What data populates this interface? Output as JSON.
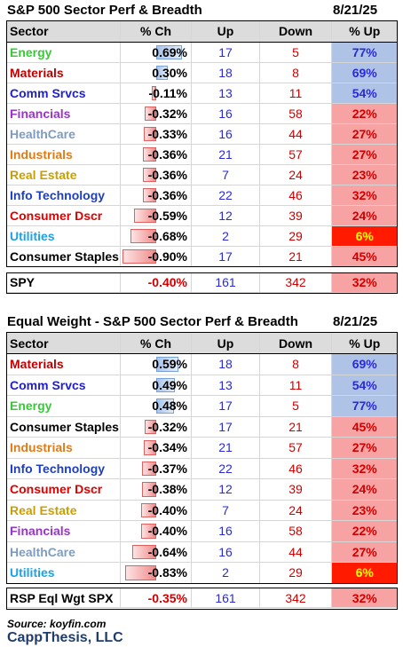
{
  "colors": {
    "up_text": "#2a2ad8",
    "down_text": "#d00000",
    "hi_fill": "#aec3e6",
    "lo_fill": "#f7a3a3",
    "worst_fill": "#ff1a00",
    "worst_text": "#ffff00",
    "pos_bar": "#a9c4ea",
    "neg_bar": "#f08c8c",
    "brand": "#1f3c6e"
  },
  "chart_data": [
    {
      "type": "table",
      "title": "S&P 500 Sector Perf & Breadth",
      "date": "8/21/25",
      "columns": [
        "Sector",
        "% Ch",
        "Up",
        "Down",
        "% Up"
      ],
      "rows": [
        {
          "sector": "Energy",
          "color": "#33cc33",
          "pct": "0.69%",
          "value": 0.69,
          "up": "17",
          "down": "5",
          "pct_up": "77%",
          "level": "hi"
        },
        {
          "sector": "Materials",
          "color": "#c00000",
          "pct": "0.30%",
          "value": 0.3,
          "up": "18",
          "down": "8",
          "pct_up": "69%",
          "level": "hi"
        },
        {
          "sector": "Comm Srvcs",
          "color": "#1f1fcc",
          "pct": "-0.11%",
          "value": -0.11,
          "up": "13",
          "down": "11",
          "pct_up": "54%",
          "level": "hi"
        },
        {
          "sector": "Financials",
          "color": "#9933cc",
          "pct": "-0.32%",
          "value": -0.32,
          "up": "16",
          "down": "58",
          "pct_up": "22%",
          "level": "lo"
        },
        {
          "sector": "HealthCare",
          "color": "#7f9cbf",
          "pct": "-0.33%",
          "value": -0.33,
          "up": "16",
          "down": "44",
          "pct_up": "27%",
          "level": "lo"
        },
        {
          "sector": "Industrials",
          "color": "#e07b1a",
          "pct": "-0.36%",
          "value": -0.36,
          "up": "21",
          "down": "57",
          "pct_up": "27%",
          "level": "lo"
        },
        {
          "sector": "Real Estate",
          "color": "#c9a000",
          "pct": "-0.36%",
          "value": -0.36,
          "up": "7",
          "down": "24",
          "pct_up": "23%",
          "level": "lo"
        },
        {
          "sector": "Info Technology",
          "color": "#1f3fbf",
          "pct": "-0.36%",
          "value": -0.36,
          "up": "22",
          "down": "46",
          "pct_up": "32%",
          "level": "lo"
        },
        {
          "sector": "Consumer Dscr",
          "color": "#e00000",
          "pct": "-0.59%",
          "value": -0.59,
          "up": "12",
          "down": "39",
          "pct_up": "24%",
          "level": "lo"
        },
        {
          "sector": "Utilities",
          "color": "#1aa3e8",
          "pct": "-0.68%",
          "value": -0.68,
          "up": "2",
          "down": "29",
          "pct_up": "6%",
          "level": "worst"
        },
        {
          "sector": "Consumer Staples",
          "color": "#000000",
          "pct": "-0.90%",
          "value": -0.9,
          "up": "17",
          "down": "21",
          "pct_up": "45%",
          "level": "lo"
        }
      ],
      "total": {
        "sector": "SPY",
        "pct": "-0.40%",
        "up": "161",
        "down": "342",
        "pct_up": "32%",
        "level": "lo"
      }
    },
    {
      "type": "table",
      "title": "Equal Weight - S&P 500 Sector Perf & Breadth",
      "date": "8/21/25",
      "columns": [
        "Sector",
        "% Ch",
        "Up",
        "Down",
        "% Up"
      ],
      "rows": [
        {
          "sector": "Materials",
          "color": "#c00000",
          "pct": "0.59%",
          "value": 0.59,
          "up": "18",
          "down": "8",
          "pct_up": "69%",
          "level": "hi"
        },
        {
          "sector": "Comm Srvcs",
          "color": "#1f1fcc",
          "pct": "0.49%",
          "value": 0.49,
          "up": "13",
          "down": "11",
          "pct_up": "54%",
          "level": "hi"
        },
        {
          "sector": "Energy",
          "color": "#33cc33",
          "pct": "0.48%",
          "value": 0.48,
          "up": "17",
          "down": "5",
          "pct_up": "77%",
          "level": "hi"
        },
        {
          "sector": "Consumer Staples",
          "color": "#000000",
          "pct": "-0.32%",
          "value": -0.32,
          "up": "17",
          "down": "21",
          "pct_up": "45%",
          "level": "lo"
        },
        {
          "sector": "Industrials",
          "color": "#e07b1a",
          "pct": "-0.34%",
          "value": -0.34,
          "up": "21",
          "down": "57",
          "pct_up": "27%",
          "level": "lo"
        },
        {
          "sector": "Info Technology",
          "color": "#1f3fbf",
          "pct": "-0.37%",
          "value": -0.37,
          "up": "22",
          "down": "46",
          "pct_up": "32%",
          "level": "lo"
        },
        {
          "sector": "Consumer Dscr",
          "color": "#e00000",
          "pct": "-0.38%",
          "value": -0.38,
          "up": "12",
          "down": "39",
          "pct_up": "24%",
          "level": "lo"
        },
        {
          "sector": "Real Estate",
          "color": "#c9a000",
          "pct": "-0.40%",
          "value": -0.4,
          "up": "7",
          "down": "24",
          "pct_up": "23%",
          "level": "lo"
        },
        {
          "sector": "Financials",
          "color": "#9933cc",
          "pct": "-0.40%",
          "value": -0.4,
          "up": "16",
          "down": "58",
          "pct_up": "22%",
          "level": "lo"
        },
        {
          "sector": "HealthCare",
          "color": "#7f9cbf",
          "pct": "-0.64%",
          "value": -0.64,
          "up": "16",
          "down": "44",
          "pct_up": "27%",
          "level": "lo"
        },
        {
          "sector": "Utilities",
          "color": "#1aa3e8",
          "pct": "-0.83%",
          "value": -0.83,
          "up": "2",
          "down": "29",
          "pct_up": "6%",
          "level": "worst"
        }
      ],
      "total": {
        "sector": "RSP Eql Wgt SPX",
        "pct": "-0.35%",
        "up": "161",
        "down": "342",
        "pct_up": "32%",
        "level": "lo"
      }
    }
  ],
  "footer": {
    "source": "Source: koyfin.com",
    "brand": "CappThesis, LLC"
  }
}
